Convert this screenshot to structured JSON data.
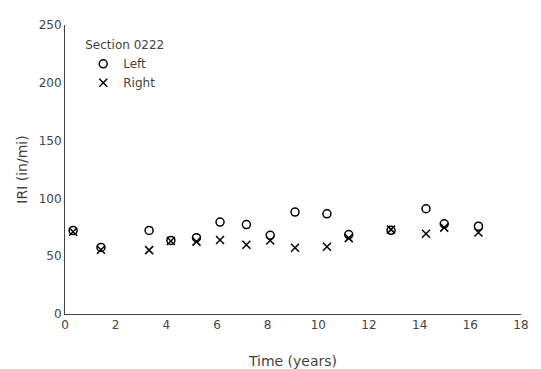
{
  "chart_data": {
    "type": "scatter",
    "x": [
      0.32,
      1.42,
      3.32,
      4.18,
      5.19,
      6.12,
      7.16,
      8.1,
      9.08,
      10.34,
      11.2,
      12.87,
      14.25,
      14.97,
      16.32
    ],
    "series": [
      {
        "name": "Left",
        "color": "#000000",
        "marker": "circle",
        "values": [
          72.13,
          57.6,
          72.26,
          63.65,
          66.02,
          79.49,
          77.4,
          68.06,
          88.13,
          86.7,
          68.69,
          72.39,
          91.04,
          78.03,
          75.96
        ]
      },
      {
        "name": "Right",
        "color": "#000000",
        "marker": "x",
        "values": [
          71.17,
          55.64,
          55.25,
          63.15,
          62.61,
          64.0,
          59.98,
          63.57,
          57.27,
          58.14,
          65.61,
          73.01,
          69.38,
          74.71,
          70.47
        ]
      }
    ],
    "annotations": [
      "Section 0222"
    ],
    "xlabel": "Time (years)",
    "ylabel": "IRI (in/mi)",
    "xlim": [
      0,
      18
    ],
    "ylim": [
      0,
      250
    ],
    "xticks": [
      0,
      2,
      4,
      6,
      8,
      10,
      12,
      14,
      16,
      18
    ],
    "yticks": [
      0,
      50,
      100,
      150,
      200,
      250
    ],
    "grid": false,
    "legend": "upper left"
  }
}
